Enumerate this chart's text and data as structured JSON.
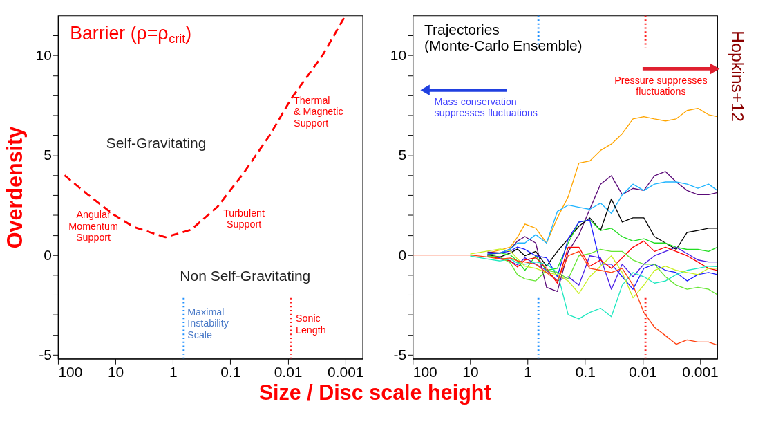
{
  "chart_data": [
    {
      "type": "line",
      "ylabel": "Overdensity",
      "xlabel": "Size / Disc scale height",
      "log": "x",
      "grid": false,
      "xlim": [
        100,
        0.0005
      ],
      "xticks": [
        100,
        10,
        1,
        0.1,
        0.01,
        0.001
      ],
      "ylim": [
        -5.2,
        12
      ],
      "yticks": [
        -5,
        {
          "value": -4,
          "label": null
        },
        {
          "value": -3,
          "label": null
        },
        {
          "value": -2,
          "label": null
        },
        {
          "value": -1,
          "label": null
        },
        0,
        {
          "value": 1,
          "label": null
        },
        {
          "value": 2,
          "label": null
        },
        {
          "value": 3,
          "label": null
        },
        {
          "value": 4,
          "label": null
        },
        5,
        {
          "value": 6,
          "label": null
        },
        {
          "value": 7,
          "label": null
        },
        {
          "value": 8,
          "label": null
        },
        {
          "value": 9,
          "label": null
        },
        10,
        {
          "value": 11,
          "label": null
        }
      ],
      "series": [
        {
          "name": "Barrier (ρ=ρ$_{crit}$)",
          "color": "#ff0000",
          "line_style": "dashed",
          "x": [
            77,
            31.6,
            11,
            4.8,
            1.35,
            0.48,
            0.166,
            0.059,
            0.0205,
            0.0088,
            0.0025,
            0.00102
          ],
          "values": [
            3.99,
            3.07,
            2.04,
            1.4,
            0.89,
            1.27,
            2.43,
            4.1,
            6.02,
            7.82,
            10,
            11.95
          ]
        },
        {
          "color": "#1e90ff",
          "line_style": "dotted",
          "x": [
            0.65,
            0.65
          ],
          "values": [
            -5.2,
            -2
          ]
        },
        {
          "color": "#ff2020",
          "line_style": "dotted",
          "x": [
            0.0089,
            0.0089
          ],
          "values": [
            -5.2,
            -2
          ]
        }
      ],
      "annotations": [
        "Self-Gravitating",
        "Non Self-Gravitating",
        "Angular\nMomentum\nSupport",
        "Turbulent\nSupport",
        "Thermal\n& Magnetic\nSupport",
        "Maximal\nInstability\nScale",
        "Sonic\nLength"
      ]
    },
    {
      "type": "line",
      "log": "x",
      "grid": false,
      "xlim": [
        100,
        0.0005
      ],
      "xticks": [
        100,
        10,
        1,
        0.1,
        0.01,
        0.001
      ],
      "ylim": [
        -5.2,
        12
      ],
      "yticks": [
        -5,
        {
          "value": -4,
          "label": null
        },
        {
          "value": -3,
          "label": null
        },
        {
          "value": -2,
          "label": null
        },
        {
          "value": -1,
          "label": null
        },
        0,
        {
          "value": 1,
          "label": null
        },
        {
          "value": 2,
          "label": null
        },
        {
          "value": 3,
          "label": null
        },
        {
          "value": 4,
          "label": null
        },
        5,
        {
          "value": 6,
          "label": null
        },
        {
          "value": 7,
          "label": null
        },
        {
          "value": 8,
          "label": null
        },
        {
          "value": 9,
          "label": null
        },
        10,
        {
          "value": 11,
          "label": null
        }
      ],
      "x": [
        100,
        30,
        10,
        5,
        3,
        2,
        1.5,
        1.115,
        0.723,
        0.469,
        0.304,
        0.197,
        0.128,
        0.083,
        0.0538,
        0.0349,
        0.0226,
        0.0147,
        0.0095,
        0.0062,
        0.004,
        0.0026,
        0.00168,
        0.00109,
        0.00071,
        0.0005
      ],
      "series": [
        {
          "color": "#ffa500",
          "values": [
            null,
            null,
            null,
            0.1,
            0.25,
            0.4,
            0.9,
            1.55,
            1.34,
            0.6,
            1.86,
            2.92,
            4.61,
            4.71,
            5.24,
            5.56,
            6.08,
            6.82,
            6.93,
            6.82,
            6.72,
            6.82,
            7.24,
            7.35,
            7.03,
            6.93
          ]
        },
        {
          "color": "#5a0a78",
          "values": [
            null,
            null,
            null,
            0.15,
            0.1,
            0.3,
            0.7,
            0.92,
            0.6,
            -1.62,
            -1.83,
            0.17,
            1.02,
            2.29,
            3.55,
            3.97,
            3.02,
            3.34,
            3.23,
            3.97,
            4.18,
            3.66,
            3.23,
            3.02,
            3.02,
            3.13
          ]
        },
        {
          "color": "#1eb4ff",
          "values": [
            null,
            null,
            null,
            0.05,
            0.1,
            0.3,
            0.6,
            0.6,
            1.02,
            0.6,
            2.18,
            2.5,
            2.39,
            2.29,
            2.6,
            2.08,
            3.02,
            3.55,
            3.23,
            3.55,
            3.66,
            3.66,
            3.55,
            3.34,
            3.55,
            3.23
          ]
        },
        {
          "color": "#000000",
          "values": [
            null,
            null,
            null,
            0,
            -0.1,
            0.1,
            0.3,
            -0.04,
            0.18,
            -0.56,
            0.18,
            0.81,
            1.44,
            1.86,
            1.23,
            2.81,
            1.65,
            1.86,
            1.86,
            0.92,
            0.6,
            0.28,
            1.13,
            1.23,
            1.34,
            1.34
          ]
        },
        {
          "color": "#22dd22",
          "values": [
            null,
            null,
            null,
            0.02,
            0.1,
            0,
            -0.3,
            -0.77,
            -0.04,
            -0.77,
            -0.67,
            0.6,
            1.65,
            1.76,
            1.23,
            1.34,
            0.92,
            0.7,
            0.81,
            0.6,
            0.6,
            0.39,
            0.28,
            0.28,
            0.18,
            0.39
          ]
        },
        {
          "color": "#2020ff",
          "values": [
            null,
            null,
            null,
            0.05,
            0.1,
            0.2,
            0.4,
            0.28,
            -0.04,
            -0.14,
            -1.09,
            0.81,
            1.65,
            1.76,
            -0.46,
            -0.46,
            -1.09,
            -1.72,
            -0.67,
            -0.46,
            -0.77,
            -0.88,
            -1.3,
            -0.98,
            -0.88,
            -0.98
          ]
        },
        {
          "color": "#4b1ee6",
          "values": [
            null,
            null,
            null,
            -0.05,
            -0.15,
            -0.3,
            -0.5,
            -0.14,
            -0.46,
            -0.77,
            -1.3,
            -1.09,
            -1.51,
            -0.04,
            -0.14,
            -1.72,
            -0.46,
            -1.09,
            -0.46,
            -0.04,
            0.18,
            0.39,
            0.07,
            -0.25,
            -0.35,
            -0.35
          ]
        },
        {
          "color": "#ff0000",
          "values": [
            null,
            null,
            null,
            -0.02,
            -0.2,
            -0.3,
            -0.6,
            -0.25,
            -0.14,
            -0.67,
            -1.41,
            0.39,
            0.39,
            -0.56,
            -0.25,
            -0.67,
            -0.14,
            0.39,
            0.7,
            0.18,
            0.39,
            0.18,
            -0.04,
            -0.35,
            -0.67,
            -0.77
          ]
        },
        {
          "color": "#20e8c0",
          "values": [
            null,
            null,
            -0.05,
            -0.2,
            -0.3,
            -0.2,
            -0.4,
            -0.46,
            -0.35,
            -0.46,
            -0.88,
            -2.99,
            -3.2,
            -2.88,
            -2.67,
            -3.09,
            -1.51,
            -0.88,
            -1.09,
            -1.41,
            -1.3,
            -0.98,
            -0.77,
            -0.67,
            -0.56,
            -0.58
          ]
        },
        {
          "color": "#c8f020",
          "values": [
            null,
            null,
            0.05,
            0.2,
            0.3,
            0.2,
            -0.2,
            -0.56,
            -0.67,
            -0.88,
            -0.98,
            -1.3,
            -1.93,
            -1.09,
            -0.56,
            -0.04,
            -0.88,
            -2.15,
            -1.51,
            -0.77,
            -0.56,
            -0.77,
            -0.88,
            -0.98,
            -0.67,
            -0.67
          ]
        },
        {
          "color": "#66e633",
          "values": [
            null,
            null,
            null,
            -0.05,
            -0.1,
            -0.4,
            -1.0,
            -1.2,
            -1.3,
            -0.77,
            -0.88,
            -1.2,
            -0.04,
            0.07,
            0.28,
            0.18,
            0.18,
            -0.25,
            -0.46,
            -0.46,
            -1.09,
            -1.51,
            -1.72,
            -1.62,
            -1.72,
            -1.99
          ]
        },
        {
          "color": "#ff4010",
          "values": [
            0,
            0,
            0,
            -0.1,
            -0.2,
            -0.15,
            -0.3,
            -0.35,
            -0.46,
            -0.88,
            -1.3,
            -0.04,
            0.18,
            -0.67,
            -0.77,
            -0.88,
            -0.67,
            -1.51,
            -2.88,
            -3.62,
            -4.04,
            -4.47,
            -4.26,
            -4.36,
            -4.36,
            -4.52
          ]
        },
        {
          "color": "#1e90ff",
          "line_style": "dotted",
          "x": [
            0.65,
            0.65
          ],
          "values": [
            12,
            10.4
          ]
        },
        {
          "color": "#1e90ff",
          "line_style": "dotted",
          "x": [
            0.65,
            0.65
          ],
          "values": [
            -5.2,
            -2
          ]
        },
        {
          "color": "#ff2020",
          "line_style": "dotted",
          "x": [
            0.0089,
            0.0089
          ],
          "values": [
            12,
            10.4
          ]
        },
        {
          "color": "#ff2020",
          "line_style": "dotted",
          "x": [
            0.0089,
            0.0089
          ],
          "values": [
            -5.2,
            -2
          ]
        }
      ],
      "annotations": [
        "Trajectories\n(Monte-Carlo Ensemble)",
        "Mass conservation\nsuppresses fluctuations",
        "Pressure suppresses\nfluctuations",
        "Hopkins+12"
      ]
    }
  ]
}
